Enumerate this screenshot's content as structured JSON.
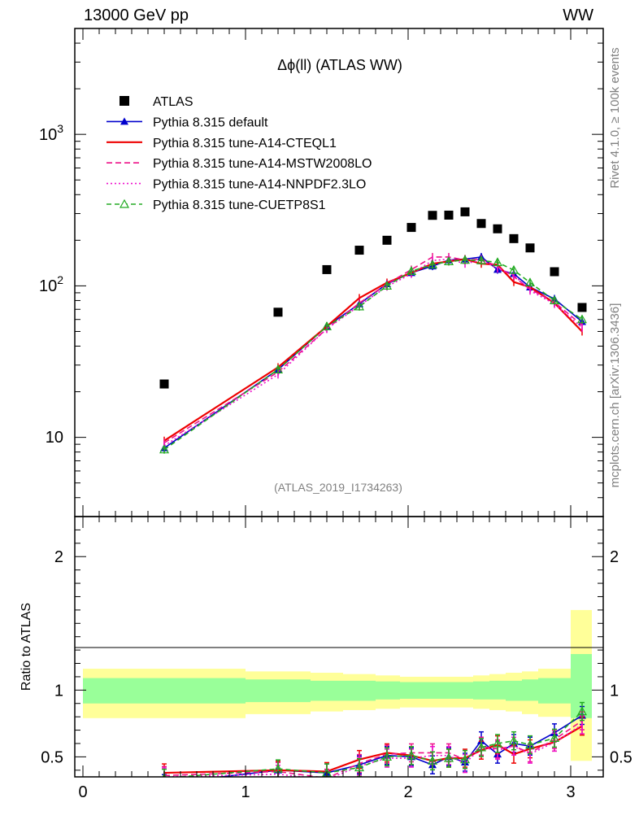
{
  "header": {
    "left": "13000 GeV pp",
    "right": "WW"
  },
  "side_text": {
    "rivet": "Rivet 4.1.0, ≥ 100k events",
    "mcplots": "mcplots.cern.ch [arXiv:1306.3436]"
  },
  "chart_data": [
    {
      "type": "scatter",
      "title": "Δϕ(ll) (ATLAS WW)",
      "analysis_label": "(ATLAS_2019_I1734263)",
      "yscale": "log",
      "xlim": [
        -0.05,
        3.2
      ],
      "ylim": [
        3,
        5000
      ],
      "ytick_labels": [
        {
          "value": 10,
          "label": "10"
        },
        {
          "value": 100,
          "label": "10^2"
        },
        {
          "value": 1000,
          "label": "10^3"
        }
      ],
      "data": {
        "name": "ATLAS",
        "x": [
          0.5,
          1.2,
          1.5,
          1.7,
          1.87,
          2.02,
          2.15,
          2.25,
          2.35,
          2.45,
          2.55,
          2.65,
          2.75,
          2.9,
          3.07
        ],
        "y": [
          22.5,
          67,
          128,
          172,
          200,
          243,
          292,
          293,
          308,
          258,
          238,
          205,
          178,
          124,
          72
        ]
      },
      "series": [
        {
          "name": "Pythia 8.315 default",
          "color": "#0000cc",
          "dash": "",
          "marker": "triangle-filled",
          "x": [
            0.5,
            1.2,
            1.5,
            1.7,
            1.87,
            2.02,
            2.15,
            2.25,
            2.35,
            2.45,
            2.55,
            2.65,
            2.75,
            2.9,
            3.07
          ],
          "y": [
            8.5,
            28,
            54,
            76,
            103,
            122,
            135,
            148,
            150,
            155,
            128,
            120,
            98,
            82,
            58
          ]
        },
        {
          "name": "Pythia 8.315 tune-A14-CTEQL1",
          "color": "#ee0000",
          "dash": "",
          "marker": "none",
          "x": [
            0.5,
            1.2,
            1.5,
            1.7,
            1.87,
            2.02,
            2.15,
            2.25,
            2.35,
            2.45,
            2.55,
            2.65,
            2.75,
            2.9,
            3.07
          ],
          "y": [
            9.5,
            29,
            54,
            83,
            105,
            122,
            140,
            145,
            150,
            140,
            138,
            106,
            98,
            77,
            50
          ]
        },
        {
          "name": "Pythia 8.315 tune-A14-MSTW2008LO",
          "color": "#ee1188",
          "dash": "7,4",
          "marker": "none",
          "x": [
            0.5,
            1.2,
            1.5,
            1.7,
            1.87,
            2.02,
            2.15,
            2.25,
            2.35,
            2.45,
            2.55,
            2.65,
            2.75,
            2.9,
            3.07
          ],
          "y": [
            9.2,
            27,
            52,
            77,
            103,
            128,
            155,
            155,
            148,
            150,
            134,
            115,
            95,
            78,
            55
          ]
        },
        {
          "name": "Pythia 8.315 tune-A14-NNPDF2.3LO",
          "color": "#ee11cc",
          "dash": "2,3",
          "marker": "none",
          "x": [
            0.5,
            1.2,
            1.5,
            1.7,
            1.87,
            2.02,
            2.15,
            2.25,
            2.35,
            2.45,
            2.55,
            2.65,
            2.75,
            2.9,
            3.07
          ],
          "y": [
            8.8,
            26,
            52,
            74,
            99,
            120,
            147,
            150,
            140,
            148,
            130,
            118,
            93,
            76,
            53
          ]
        },
        {
          "name": "Pythia 8.315 tune-CUETP8S1",
          "color": "#22aa22",
          "dash": "6,4",
          "marker": "triangle-open",
          "x": [
            0.5,
            1.2,
            1.5,
            1.7,
            1.87,
            2.02,
            2.15,
            2.25,
            2.35,
            2.45,
            2.55,
            2.65,
            2.75,
            2.9,
            3.07
          ],
          "y": [
            8.3,
            28,
            54,
            73,
            100,
            125,
            138,
            145,
            148,
            147,
            143,
            127,
            105,
            80,
            60
          ]
        }
      ]
    },
    {
      "type": "line",
      "ylabel": "Ratio to ATLAS",
      "xlim": [
        -0.05,
        3.2
      ],
      "ylim": [
        0.35,
        2.3
      ],
      "xticks": [
        0,
        1,
        2,
        3
      ],
      "yticks": [
        0.5,
        1,
        2
      ],
      "bands": [
        {
          "x0": 0,
          "x1": 1,
          "y1_lo": 0.9,
          "y1_hi": 1.09,
          "y2_lo": 0.79,
          "y2_hi": 1.16
        },
        {
          "x0": 1,
          "x1": 1.4,
          "y1_lo": 0.91,
          "y1_hi": 1.08,
          "y2_lo": 0.82,
          "y2_hi": 1.14
        },
        {
          "x0": 1.4,
          "x1": 1.6,
          "y1_lo": 0.92,
          "y1_hi": 1.07,
          "y2_lo": 0.84,
          "y2_hi": 1.13
        },
        {
          "x0": 1.6,
          "x1": 1.8,
          "y1_lo": 0.92,
          "y1_hi": 1.07,
          "y2_lo": 0.85,
          "y2_hi": 1.12
        },
        {
          "x0": 1.8,
          "x1": 1.95,
          "y1_lo": 0.93,
          "y1_hi": 1.065,
          "y2_lo": 0.86,
          "y2_hi": 1.11
        },
        {
          "x0": 1.95,
          "x1": 2.1,
          "y1_lo": 0.935,
          "y1_hi": 1.06,
          "y2_lo": 0.87,
          "y2_hi": 1.1
        },
        {
          "x0": 2.1,
          "x1": 2.2,
          "y1_lo": 0.935,
          "y1_hi": 1.06,
          "y2_lo": 0.87,
          "y2_hi": 1.1
        },
        {
          "x0": 2.2,
          "x1": 2.3,
          "y1_lo": 0.935,
          "y1_hi": 1.06,
          "y2_lo": 0.87,
          "y2_hi": 1.1
        },
        {
          "x0": 2.3,
          "x1": 2.4,
          "y1_lo": 0.935,
          "y1_hi": 1.06,
          "y2_lo": 0.87,
          "y2_hi": 1.1
        },
        {
          "x0": 2.4,
          "x1": 2.5,
          "y1_lo": 0.93,
          "y1_hi": 1.065,
          "y2_lo": 0.86,
          "y2_hi": 1.11
        },
        {
          "x0": 2.5,
          "x1": 2.6,
          "y1_lo": 0.93,
          "y1_hi": 1.07,
          "y2_lo": 0.85,
          "y2_hi": 1.12
        },
        {
          "x0": 2.6,
          "x1": 2.7,
          "y1_lo": 0.92,
          "y1_hi": 1.07,
          "y2_lo": 0.84,
          "y2_hi": 1.13
        },
        {
          "x0": 2.7,
          "x1": 2.8,
          "y1_lo": 0.92,
          "y1_hi": 1.08,
          "y2_lo": 0.82,
          "y2_hi": 1.14
        },
        {
          "x0": 2.8,
          "x1": 3.0,
          "y1_lo": 0.9,
          "y1_hi": 1.09,
          "y2_lo": 0.8,
          "y2_hi": 1.16
        },
        {
          "x0": 3.0,
          "x1": 3.13,
          "y1_lo": 0.79,
          "y1_hi": 1.27,
          "y2_lo": 0.47,
          "y2_hi": 1.6
        }
      ],
      "series": [
        {
          "name": "Pythia 8.315 default",
          "color": "#0000cc",
          "dash": "",
          "marker": "triangle-filled",
          "x": [
            0.5,
            1.2,
            1.5,
            1.7,
            1.87,
            2.02,
            2.15,
            2.25,
            2.35,
            2.45,
            2.55,
            2.65,
            2.75,
            2.9,
            3.07
          ],
          "y": [
            0.3,
            0.4,
            0.38,
            0.44,
            0.51,
            0.5,
            0.44,
            0.5,
            0.46,
            0.62,
            0.52,
            0.6,
            0.58,
            0.68,
            0.81
          ]
        },
        {
          "name": "Pythia 8.315 tune-A14-CTEQL1",
          "color": "#ee0000",
          "dash": "",
          "marker": "none",
          "x": [
            0.5,
            1.2,
            1.5,
            1.7,
            1.87,
            2.02,
            2.15,
            2.25,
            2.35,
            2.45,
            2.55,
            2.65,
            2.75,
            2.9,
            3.07
          ],
          "y": [
            0.38,
            0.4,
            0.39,
            0.48,
            0.53,
            0.51,
            0.47,
            0.49,
            0.49,
            0.55,
            0.59,
            0.52,
            0.56,
            0.61,
            0.73
          ]
        },
        {
          "name": "Pythia 8.315 tune-A14-MSTW2008LO",
          "color": "#ee1188",
          "dash": "7,4",
          "marker": "none",
          "x": [
            0.5,
            1.2,
            1.5,
            1.7,
            1.87,
            2.02,
            2.15,
            2.25,
            2.35,
            2.45,
            2.55,
            2.65,
            2.75,
            2.9,
            3.07
          ],
          "y": [
            0.36,
            0.39,
            0.34,
            0.45,
            0.52,
            0.53,
            0.53,
            0.53,
            0.48,
            0.58,
            0.56,
            0.58,
            0.53,
            0.63,
            0.77
          ]
        },
        {
          "name": "Pythia 8.315 tune-A14-NNPDF2.3LO",
          "color": "#ee11cc",
          "dash": "2,3",
          "marker": "none",
          "x": [
            0.5,
            1.2,
            1.5,
            1.7,
            1.87,
            2.02,
            2.15,
            2.25,
            2.35,
            2.45,
            2.55,
            2.65,
            2.75,
            2.9,
            3.07
          ],
          "y": [
            0.35,
            0.37,
            0.33,
            0.43,
            0.49,
            0.49,
            0.51,
            0.51,
            0.45,
            0.57,
            0.55,
            0.58,
            0.52,
            0.61,
            0.74
          ]
        },
        {
          "name": "Pythia 8.315 tune-CUETP8S1",
          "color": "#22aa22",
          "dash": "6,4",
          "marker": "triangle-open",
          "x": [
            0.5,
            1.2,
            1.5,
            1.7,
            1.87,
            2.02,
            2.15,
            2.25,
            2.35,
            2.45,
            2.55,
            2.65,
            2.75,
            2.9,
            3.07
          ],
          "y": [
            0.34,
            0.41,
            0.38,
            0.42,
            0.5,
            0.51,
            0.47,
            0.49,
            0.48,
            0.57,
            0.6,
            0.62,
            0.59,
            0.64,
            0.84
          ]
        }
      ]
    }
  ]
}
